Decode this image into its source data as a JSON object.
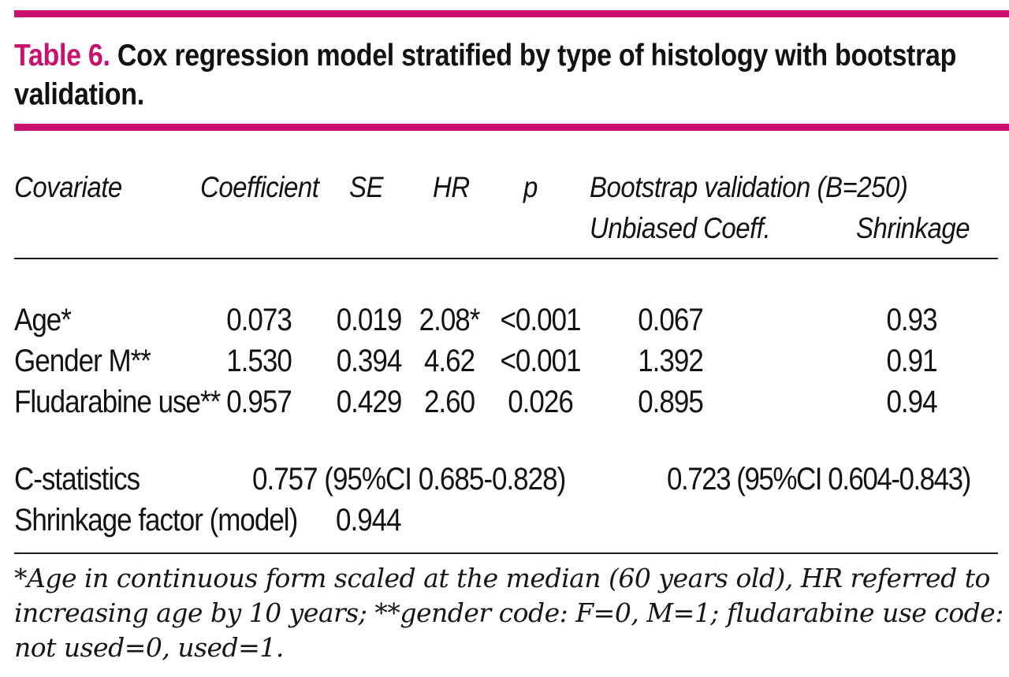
{
  "colors": {
    "accent_magenta": "#C8106C",
    "text": "#121212",
    "rule": "#1b1b1b"
  },
  "title": {
    "label": "Table 6.",
    "text": "Cox regression model stratified by type of histology with bootstrap validation."
  },
  "table": {
    "headers": {
      "covariate": "Covariate",
      "coefficient": "Coefficient",
      "se": "SE",
      "hr": "HR",
      "p": "p",
      "bootstrap_group": "Bootstrap validation (B=250)",
      "unbiased_coeff": "Unbiased Coeff.",
      "shrinkage": "Shrinkage"
    },
    "rows": [
      {
        "covariate": "Age*",
        "coefficient": "0.073",
        "se": "0.019",
        "hr": "2.08*",
        "p": "<0.001",
        "unbiased_coeff": "0.067",
        "shrinkage": "0.93"
      },
      {
        "covariate": "Gender M**",
        "coefficient": "1.530",
        "se": "0.394",
        "hr": "4.62",
        "p": "<0.001",
        "unbiased_coeff": "1.392",
        "shrinkage": "0.91"
      },
      {
        "covariate": "Fludarabine use**",
        "coefficient": "0.957",
        "se": "0.429",
        "hr": "2.60",
        "p": "0.026",
        "unbiased_coeff": "0.895",
        "shrinkage": "0.94"
      }
    ],
    "summary": {
      "c_statistics": {
        "label": "C-statistics",
        "model_value": "0.757 (95%CI 0.685-0.828)",
        "bootstrap_value": "0.723 (95%CI 0.604-0.843)"
      },
      "shrinkage_factor": {
        "label": "Shrinkage factor (model)",
        "value": "0.944"
      }
    }
  },
  "footnote": "*Age in continuous form scaled at the median (60 years old), HR referred to increasing age by 10 years; **gender code: F=0, M=1; fludarabine use code: not used=0, used=1."
}
